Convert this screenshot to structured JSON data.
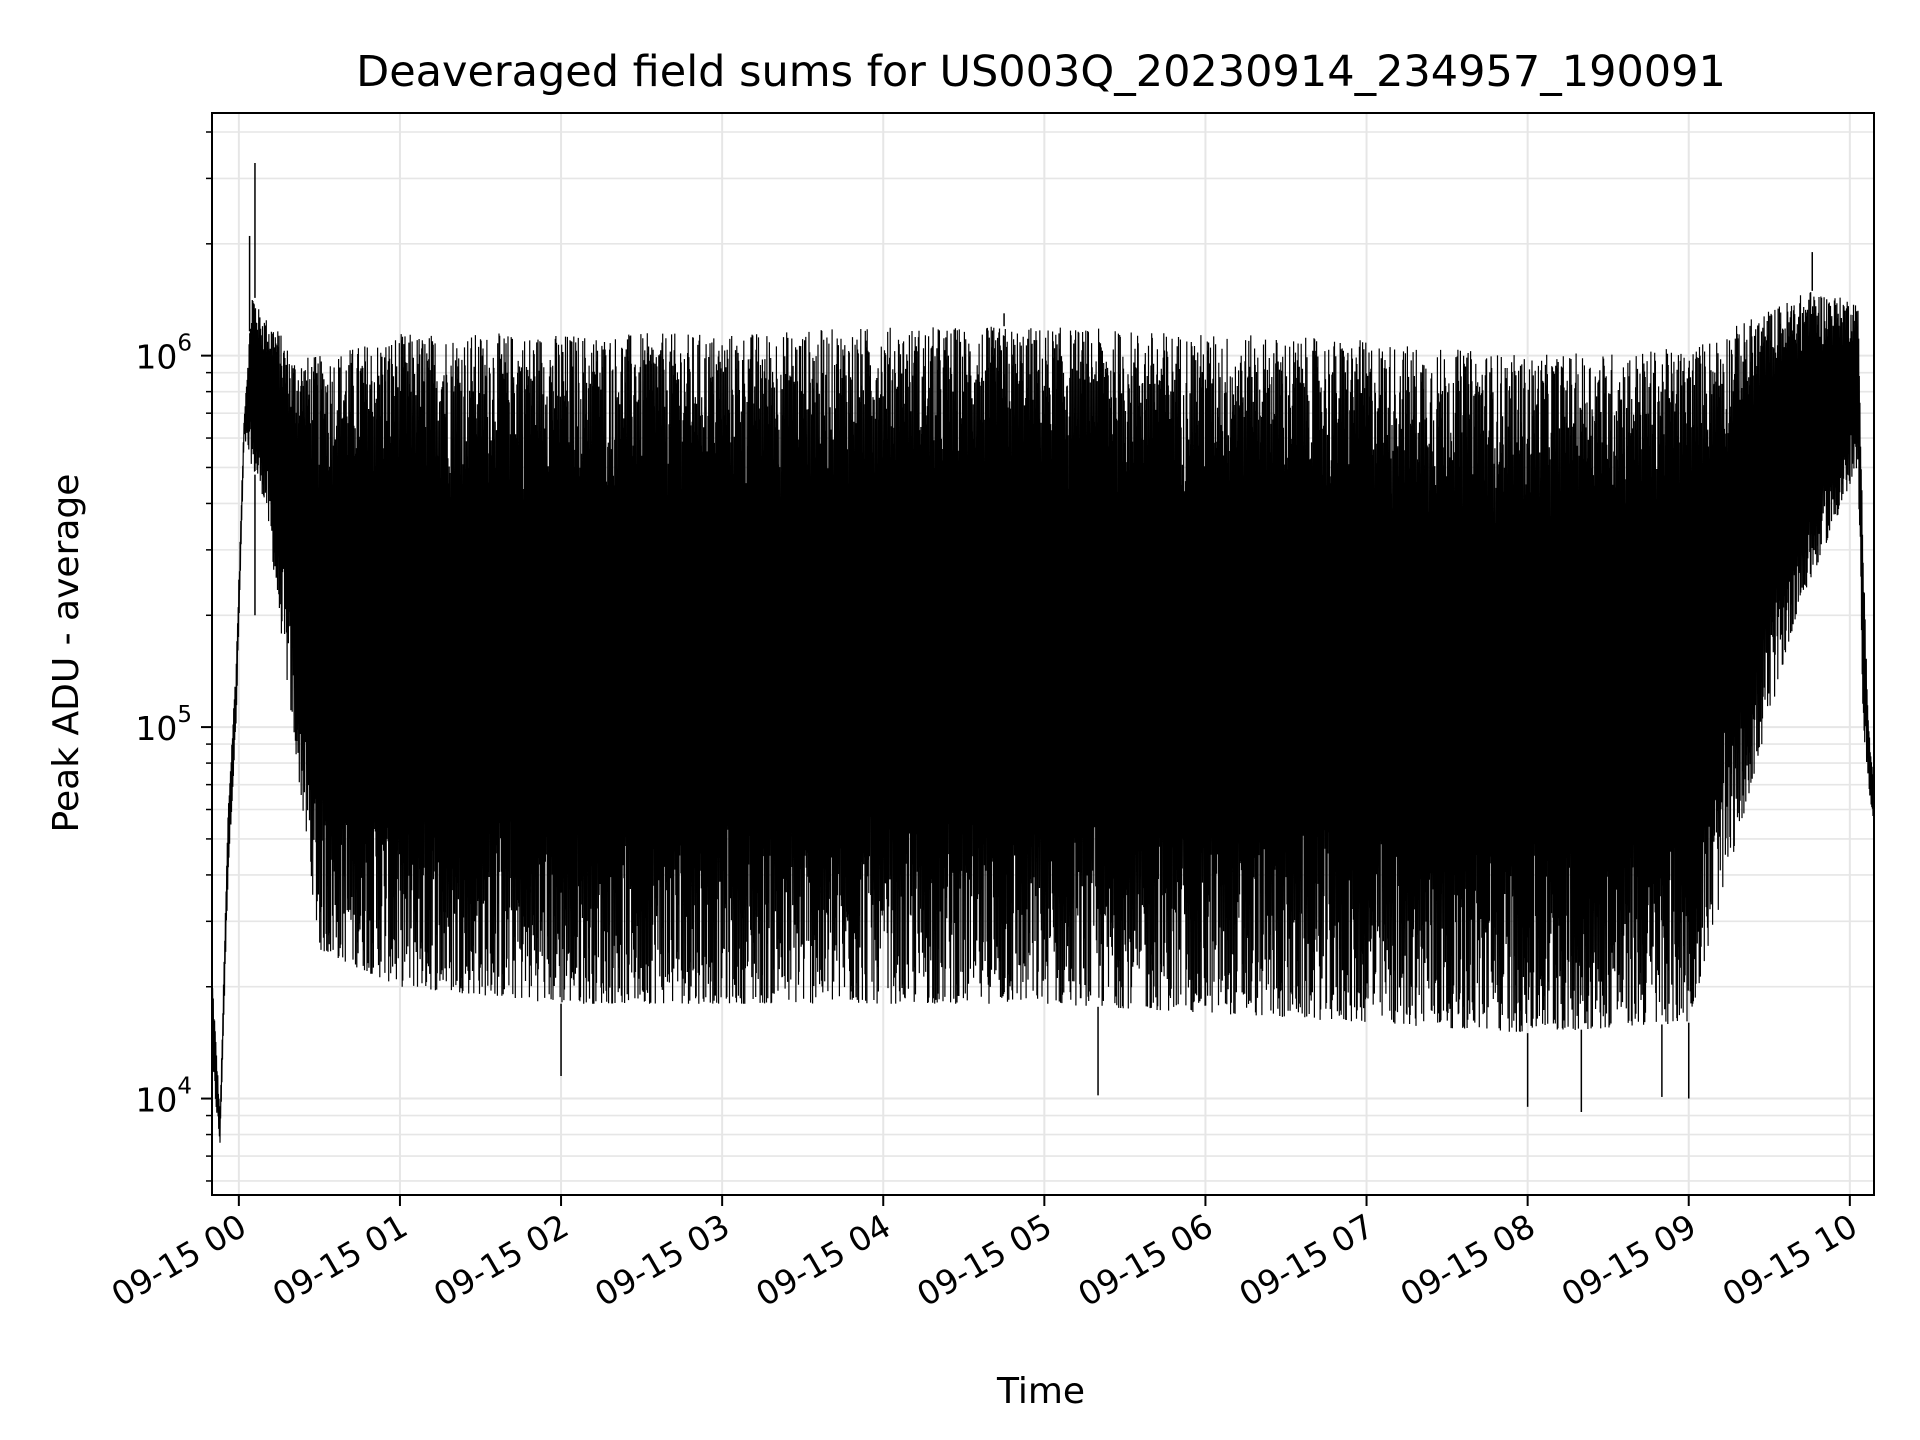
{
  "chart_data": {
    "type": "line",
    "title": "Deaveraged field sums for US003Q_20230914_234957_190091",
    "xlabel": "Time",
    "ylabel": "Peak ADU - average",
    "yscale": "log",
    "grid": true,
    "legend": "none",
    "line_color": "#000000",
    "grid_color": "#e6e6e6",
    "xlim": [
      "2023-09-14 23:50",
      "2023-09-15 10:09"
    ],
    "ylim": [
      5500,
      4500000
    ],
    "x_ticks": [
      {
        "t": "2023-09-15 00:00",
        "label": "09-15 00"
      },
      {
        "t": "2023-09-15 01:00",
        "label": "09-15 01"
      },
      {
        "t": "2023-09-15 02:00",
        "label": "09-15 02"
      },
      {
        "t": "2023-09-15 03:00",
        "label": "09-15 03"
      },
      {
        "t": "2023-09-15 04:00",
        "label": "09-15 04"
      },
      {
        "t": "2023-09-15 05:00",
        "label": "09-15 05"
      },
      {
        "t": "2023-09-15 06:00",
        "label": "09-15 06"
      },
      {
        "t": "2023-09-15 07:00",
        "label": "09-15 07"
      },
      {
        "t": "2023-09-15 08:00",
        "label": "09-15 08"
      },
      {
        "t": "2023-09-15 09:00",
        "label": "09-15 09"
      },
      {
        "t": "2023-09-15 10:00",
        "label": "09-15 10"
      }
    ],
    "y_ticks": [
      {
        "value": 10000,
        "base": "10",
        "exp": "4"
      },
      {
        "value": 100000,
        "base": "10",
        "exp": "5"
      },
      {
        "value": 1000000,
        "base": "10",
        "exp": "6"
      }
    ],
    "series": [
      {
        "envelope_upper": [
          [
            "2023-09-14 23:50",
            22000
          ],
          [
            "2023-09-14 23:53",
            9000
          ],
          [
            "2023-09-14 23:56",
            60000
          ],
          [
            "2023-09-14 23:59",
            150000
          ],
          [
            "2023-09-15 00:02",
            700000
          ],
          [
            "2023-09-15 00:05",
            1500000
          ],
          [
            "2023-09-15 00:08",
            1300000
          ],
          [
            "2023-09-15 00:14",
            1200000
          ],
          [
            "2023-09-15 00:20",
            1000000
          ],
          [
            "2023-09-15 00:30",
            1000000
          ],
          [
            "2023-09-15 01:00",
            1150000
          ],
          [
            "2023-09-15 02:00",
            1150000
          ],
          [
            "2023-09-15 03:00",
            1150000
          ],
          [
            "2023-09-15 04:00",
            1200000
          ],
          [
            "2023-09-15 05:00",
            1200000
          ],
          [
            "2023-09-15 06:00",
            1150000
          ],
          [
            "2023-09-15 07:00",
            1100000
          ],
          [
            "2023-09-15 08:00",
            1000000
          ],
          [
            "2023-09-15 09:00",
            1050000
          ],
          [
            "2023-09-15 09:45",
            1500000
          ],
          [
            "2023-09-15 10:03",
            1400000
          ],
          [
            "2023-09-15 10:05",
            300000
          ],
          [
            "2023-09-15 10:07",
            100000
          ],
          [
            "2023-09-15 10:09",
            70000
          ]
        ],
        "envelope_lower": [
          [
            "2023-09-14 23:50",
            12000
          ],
          [
            "2023-09-14 23:53",
            7500
          ],
          [
            "2023-09-14 23:56",
            40000
          ],
          [
            "2023-09-14 23:59",
            100000
          ],
          [
            "2023-09-15 00:02",
            600000
          ],
          [
            "2023-09-15 00:05",
            500000
          ],
          [
            "2023-09-15 00:10",
            400000
          ],
          [
            "2023-09-15 00:20",
            100000
          ],
          [
            "2023-09-15 00:30",
            25000
          ],
          [
            "2023-09-15 01:00",
            20000
          ],
          [
            "2023-09-15 02:00",
            18000
          ],
          [
            "2023-09-15 03:00",
            18000
          ],
          [
            "2023-09-15 04:00",
            18000
          ],
          [
            "2023-09-15 05:00",
            18000
          ],
          [
            "2023-09-15 06:00",
            17000
          ],
          [
            "2023-09-15 07:00",
            16000
          ],
          [
            "2023-09-15 08:00",
            15000
          ],
          [
            "2023-09-15 09:00",
            16000
          ],
          [
            "2023-09-15 09:40",
            200000
          ],
          [
            "2023-09-15 10:03",
            500000
          ],
          [
            "2023-09-15 10:05",
            100000
          ],
          [
            "2023-09-15 10:09",
            50000
          ]
        ],
        "spikes_up": [
          [
            "2023-09-15 00:04",
            2100000
          ],
          [
            "2023-09-15 00:06",
            3300000
          ],
          [
            "2023-09-15 04:45",
            1300000
          ],
          [
            "2023-09-15 09:46",
            1900000
          ]
        ],
        "spikes_down": [
          [
            "2023-09-15 00:06",
            200000
          ],
          [
            "2023-09-15 02:00",
            11500
          ],
          [
            "2023-09-15 05:20",
            10200
          ],
          [
            "2023-09-15 08:00",
            9500
          ],
          [
            "2023-09-15 08:20",
            9200
          ],
          [
            "2023-09-15 08:50",
            10100
          ],
          [
            "2023-09-15 09:00",
            10000
          ]
        ]
      }
    ]
  }
}
